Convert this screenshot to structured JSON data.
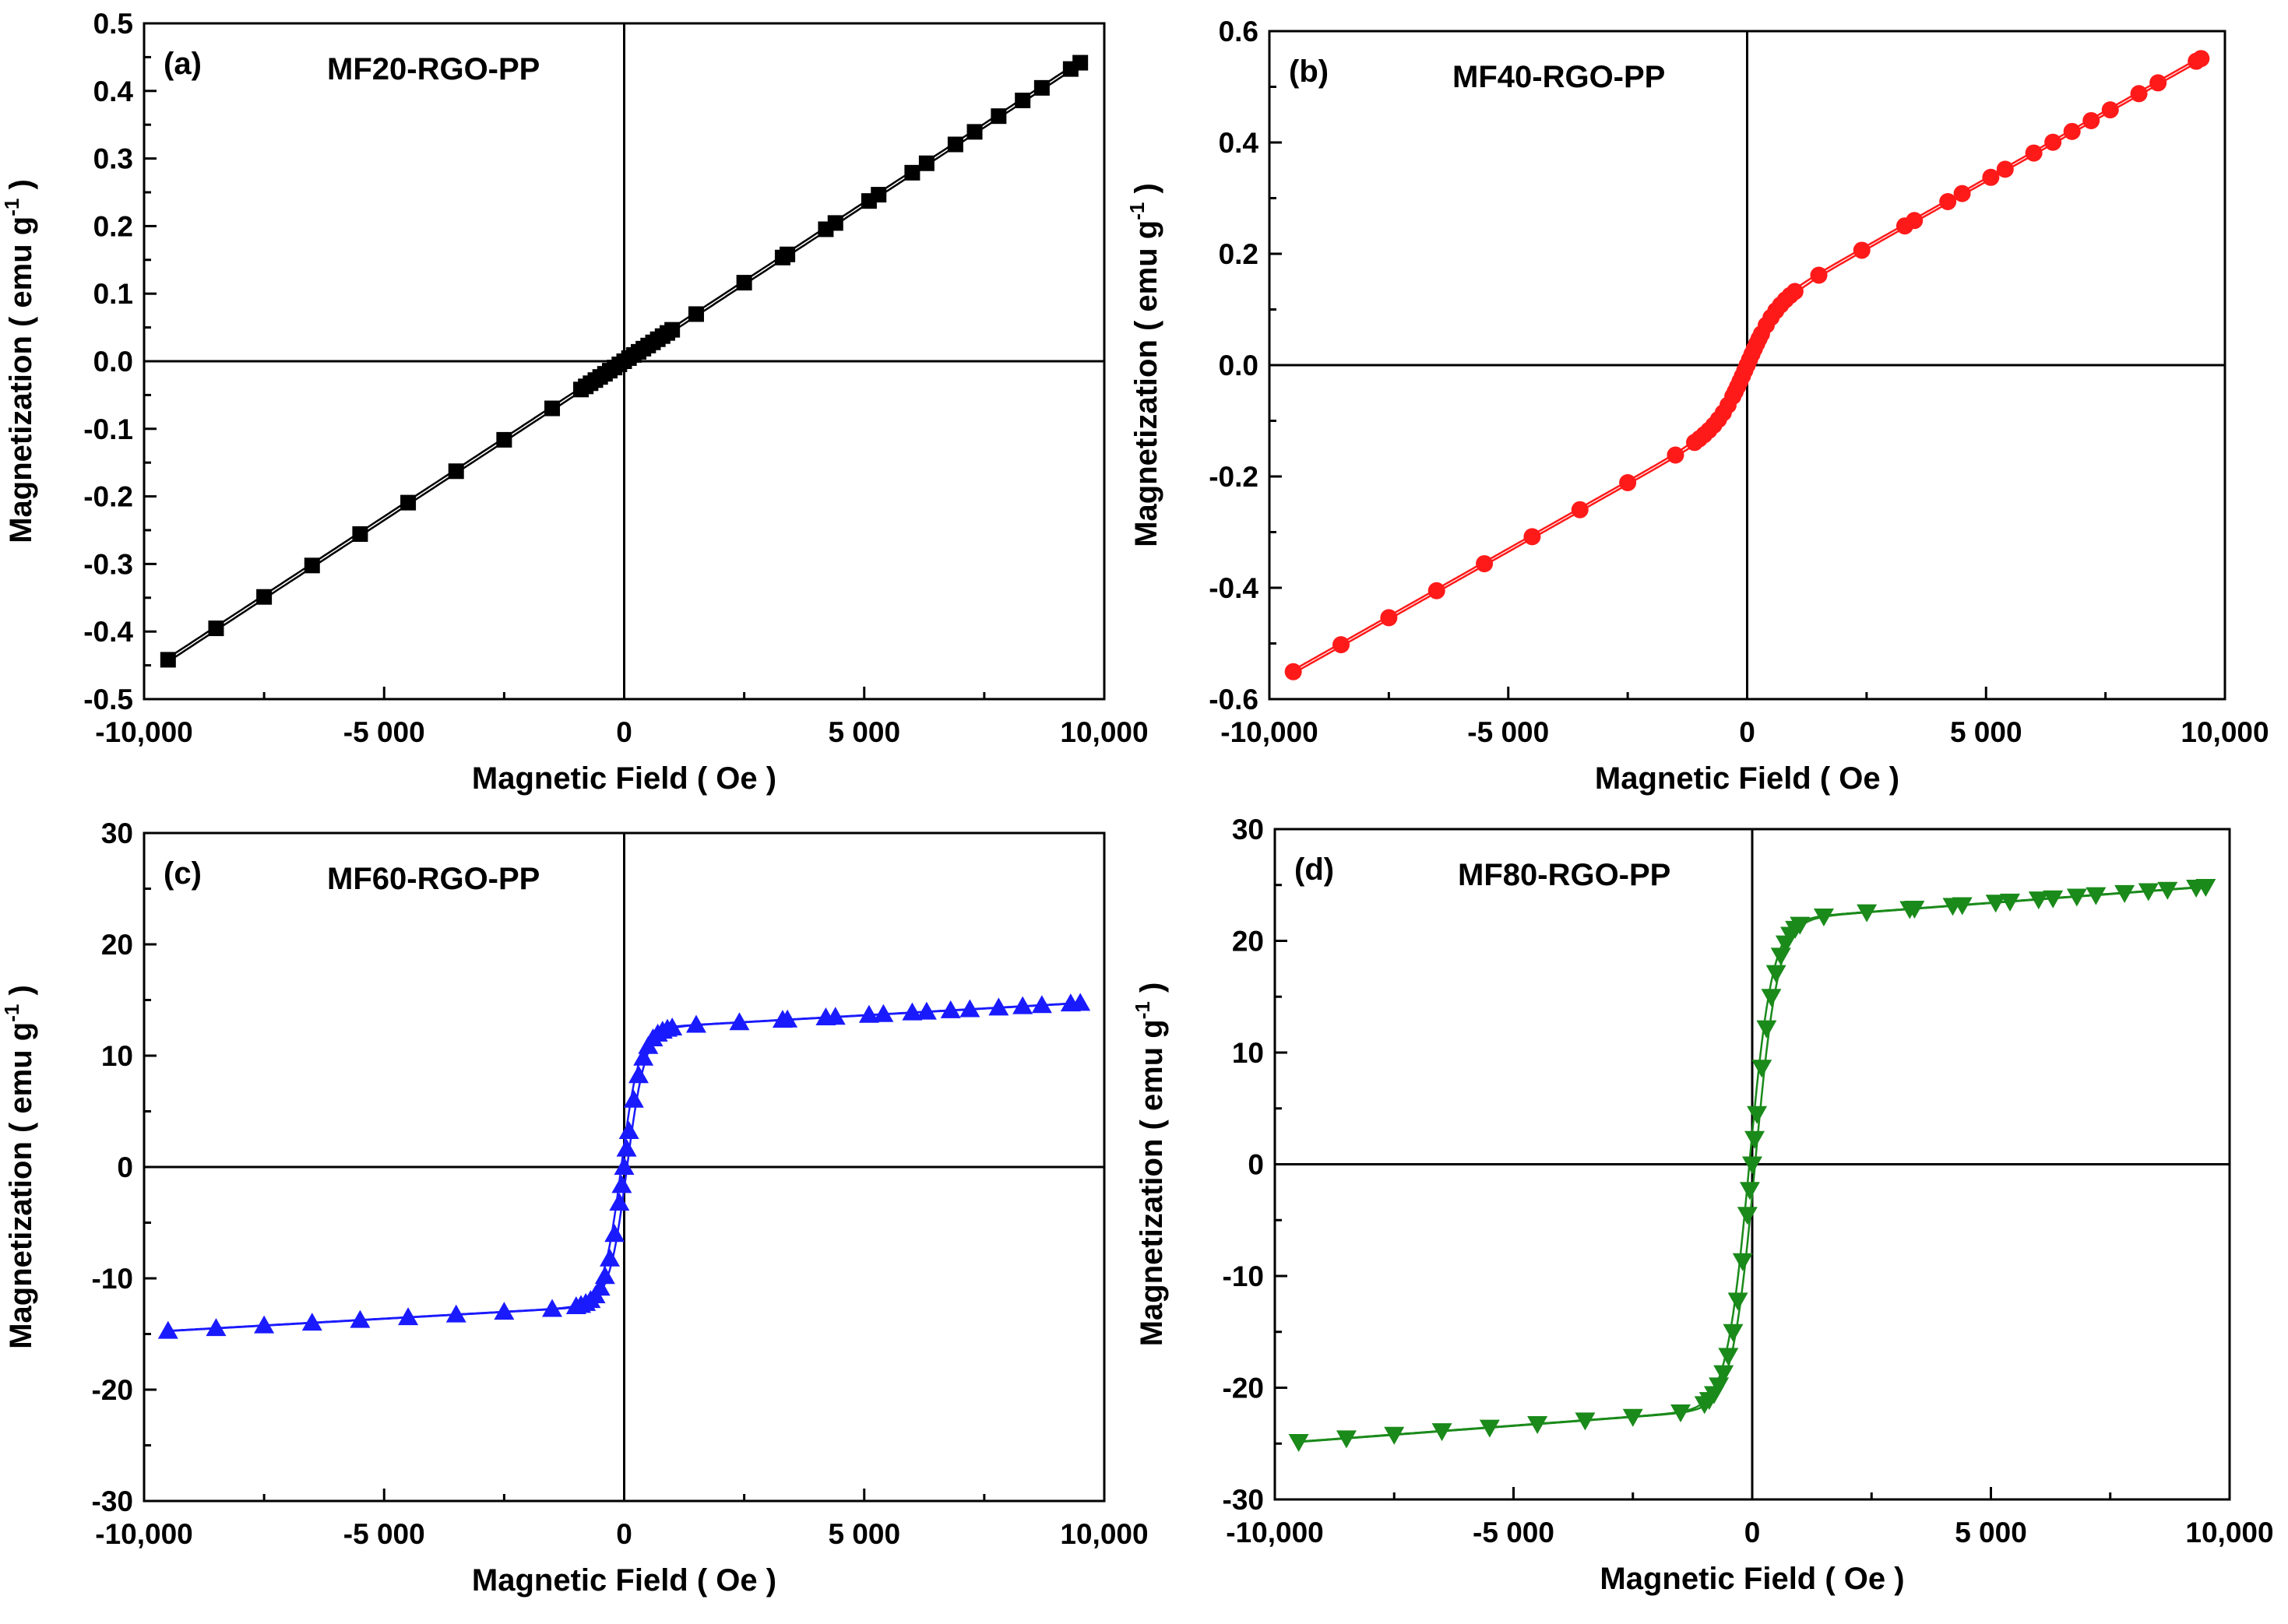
{
  "chart_data": [
    {
      "type": "scatter",
      "panel_label": "(a)",
      "title": "MF20-RGO-PP",
      "xlabel": "Magnetic Field ( Oe )",
      "ylabel": "Magnetization ( emu g",
      "ylabel_sup": "-1",
      "ylabel_close": " )",
      "xlim": [
        -10000,
        10000
      ],
      "ylim": [
        -0.5,
        0.5
      ],
      "xticks": [
        -10000,
        -5000,
        0,
        5000,
        10000
      ],
      "xtick_labels": [
        "-10,000",
        "-5 000",
        "0",
        "5 000",
        "10,000"
      ],
      "yticks": [
        -0.5,
        -0.4,
        -0.3,
        -0.2,
        -0.1,
        0.0,
        0.1,
        0.2,
        0.3,
        0.4,
        0.5
      ],
      "ytick_labels": [
        "-0.5",
        "-0.4",
        "-0.3",
        "-0.2",
        "-0.1",
        "0.0",
        "0.1",
        "0.2",
        "0.3",
        "0.4",
        "0.5"
      ],
      "marker": "square",
      "color": "#000000",
      "model": {
        "kind": "linear",
        "slope": 4.65e-05
      },
      "x": [
        -9500,
        -8500,
        -7500,
        -6500,
        -5500,
        -4500,
        -3500,
        -2500,
        -1500,
        -900,
        -800,
        -700,
        -600,
        -500,
        -400,
        -300,
        -200,
        -100,
        0,
        100,
        200,
        300,
        400,
        500,
        600,
        700,
        800,
        900,
        1000,
        1500,
        2500,
        3300,
        3400,
        4200,
        4400,
        5100,
        5300,
        6000,
        6300,
        6900,
        7300,
        7800,
        8300,
        8700,
        9300,
        9500
      ]
    },
    {
      "type": "scatter",
      "panel_label": "(b)",
      "title": "MF40-RGO-PP",
      "xlabel": "Magnetic Field ( Oe )",
      "ylabel": "Magnetization ( emu g",
      "ylabel_sup": "-1",
      "ylabel_close": " )",
      "xlim": [
        -10000,
        10000
      ],
      "ylim": [
        -0.6,
        0.6
      ],
      "xticks": [
        -10000,
        -5000,
        0,
        5000,
        10000
      ],
      "xtick_labels": [
        "-10,000",
        "-5 000",
        "0",
        "5 000",
        "10,000"
      ],
      "yticks": [
        -0.6,
        -0.4,
        -0.2,
        0.0,
        0.2,
        0.4,
        0.6
      ],
      "ytick_labels": [
        "-0.6",
        "-0.4",
        "-0.2",
        "0.0",
        "0.2",
        "0.4",
        "0.6"
      ],
      "marker": "circle",
      "color": "#ff1a1a",
      "model": {
        "kind": "linear_plus_tanh",
        "slope": 4.85e-05,
        "amp": 0.09,
        "h0": 600
      },
      "x": [
        -9500,
        -8500,
        -7500,
        -6500,
        -5500,
        -4500,
        -3500,
        -2500,
        -1500,
        -1100,
        -1000,
        -900,
        -800,
        -700,
        -600,
        -500,
        -400,
        -300,
        -250,
        -200,
        -150,
        -100,
        -50,
        0,
        50,
        100,
        150,
        200,
        250,
        300,
        400,
        500,
        600,
        700,
        800,
        900,
        1000,
        1500,
        2400,
        3300,
        3500,
        4200,
        4500,
        5100,
        5400,
        6000,
        6400,
        6800,
        7200,
        7600,
        8200,
        8600,
        9400,
        9500
      ]
    },
    {
      "type": "scatter",
      "panel_label": "(c)",
      "title": "MF60-RGO-PP",
      "xlabel": "Magnetic Field ( Oe )",
      "ylabel": "Magnetization ( emu g",
      "ylabel_sup": "-1",
      "ylabel_close": " )",
      "xlim": [
        -10000,
        10000
      ],
      "ylim": [
        -30,
        30
      ],
      "xticks": [
        -10000,
        -5000,
        0,
        5000,
        10000
      ],
      "xtick_labels": [
        "-10,000",
        "-5 000",
        "0",
        "5 000",
        "10,000"
      ],
      "yticks": [
        -30,
        -20,
        -10,
        0,
        10,
        20,
        30
      ],
      "ytick_labels": [
        "-30",
        "-20",
        "-10",
        "0",
        "10",
        "20",
        "30"
      ],
      "marker": "triangle-up",
      "color": "#1a1aff",
      "model": {
        "kind": "tanh_plus_linear",
        "ms": 12.4,
        "h0": 380,
        "slope": 0.000245
      },
      "x": [
        -9500,
        -8500,
        -7500,
        -6500,
        -5500,
        -4500,
        -3500,
        -2500,
        -1500,
        -1000,
        -900,
        -800,
        -700,
        -600,
        -500,
        -400,
        -300,
        -200,
        -100,
        -50,
        0,
        50,
        100,
        200,
        300,
        400,
        500,
        600,
        700,
        800,
        900,
        1000,
        1500,
        2400,
        3300,
        3400,
        4200,
        4400,
        5100,
        5400,
        6000,
        6300,
        6800,
        7200,
        7800,
        8300,
        8700,
        9300,
        9500
      ]
    },
    {
      "type": "scatter",
      "panel_label": "(d)",
      "title": "MF80-RGO-PP",
      "xlabel": "Magnetic Field ( Oe )",
      "ylabel": "Magnetization ( emu g",
      "ylabel_sup": "-1",
      "ylabel_close": " )",
      "xlim": [
        -10000,
        10000
      ],
      "ylim": [
        -30,
        30
      ],
      "xticks": [
        -10000,
        -5000,
        0,
        5000,
        10000
      ],
      "xtick_labels": [
        "-10,000",
        "-5 000",
        "0",
        "5 000",
        "10,000"
      ],
      "yticks": [
        -30,
        -20,
        -10,
        0,
        10,
        20,
        30
      ],
      "ytick_labels": [
        "-30",
        "-20",
        "-10",
        "0",
        "10",
        "20",
        "30"
      ],
      "marker": "triangle-down",
      "color": "#1a8a1a",
      "model": {
        "kind": "tanh_plus_linear",
        "ms": 21.8,
        "h0": 480,
        "slope": 0.00032
      },
      "x": [
        -9500,
        -8500,
        -7500,
        -6500,
        -5500,
        -4500,
        -3500,
        -2500,
        -1500,
        -1000,
        -900,
        -800,
        -700,
        -600,
        -500,
        -400,
        -300,
        -200,
        -100,
        -50,
        0,
        50,
        100,
        200,
        300,
        400,
        500,
        600,
        700,
        800,
        900,
        1000,
        1500,
        2400,
        3300,
        3400,
        4200,
        4400,
        5100,
        5400,
        6000,
        6300,
        6800,
        7200,
        7800,
        8300,
        8700,
        9300,
        9500
      ]
    }
  ]
}
